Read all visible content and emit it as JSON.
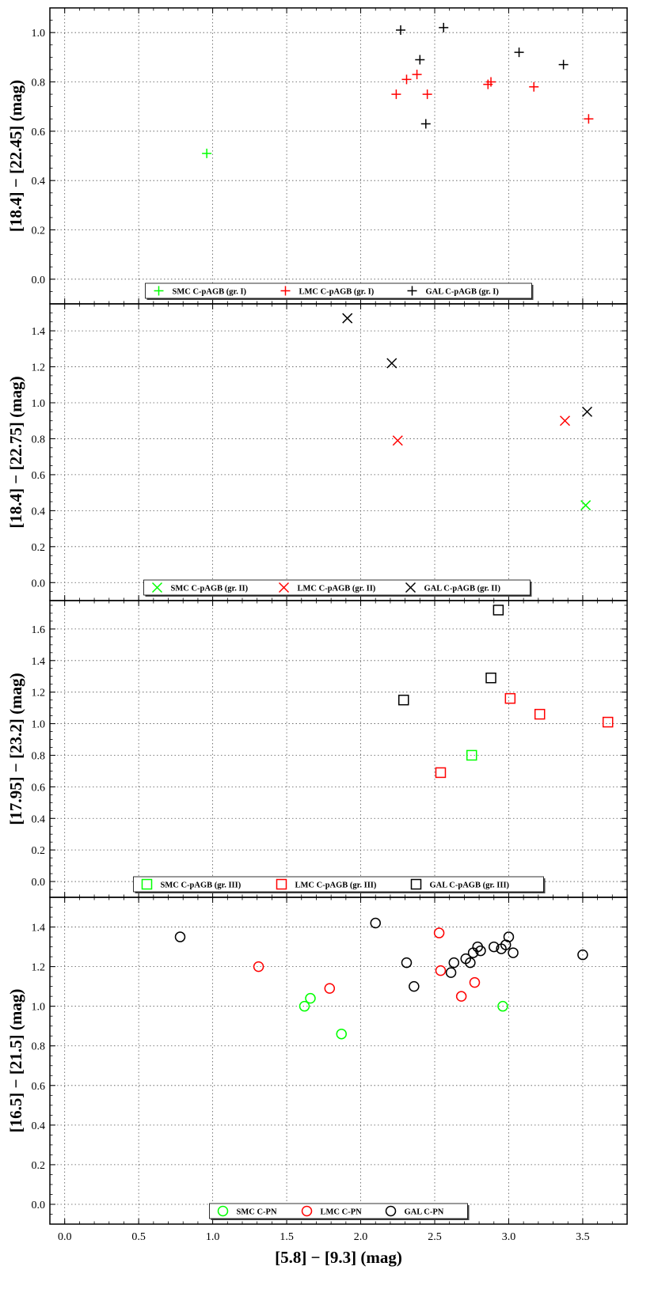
{
  "chart_data": {
    "type": "scatter",
    "xlabel": "[5.8] − [9.3] (mag)",
    "xlim": [
      -0.1,
      3.8
    ],
    "xticks": [
      "0.0",
      "0.5",
      "1.0",
      "1.5",
      "2.0",
      "2.5",
      "3.0",
      "3.5"
    ],
    "xtick_values": [
      0.0,
      0.5,
      1.0,
      1.5,
      2.0,
      2.5,
      3.0,
      3.5
    ],
    "grid": true,
    "shared_x": true,
    "panels": [
      {
        "ylabel": "[18.4] − [22.45] (mag)",
        "ylim": [
          -0.1,
          1.1
        ],
        "yticks": [
          "0.0",
          "0.2",
          "0.4",
          "0.6",
          "0.8",
          "1.0"
        ],
        "ytick_values": [
          0.0,
          0.2,
          0.4,
          0.6,
          0.8,
          1.0
        ],
        "legend_position": "bottom-center",
        "series": [
          {
            "name": "SMC C-pAGB (gr. I)",
            "marker": "plus",
            "color": "#00ff00",
            "points": [
              [
                0.96,
                0.51
              ]
            ]
          },
          {
            "name": "LMC C-pAGB (gr. I)",
            "marker": "plus",
            "color": "#ff0000",
            "points": [
              [
                2.24,
                0.75
              ],
              [
                2.31,
                0.81
              ],
              [
                2.38,
                0.83
              ],
              [
                2.45,
                0.75
              ],
              [
                2.86,
                0.79
              ],
              [
                2.88,
                0.8
              ],
              [
                3.17,
                0.78
              ],
              [
                3.54,
                0.65
              ]
            ]
          },
          {
            "name": "GAL C-pAGB (gr. I)",
            "marker": "plus",
            "color": "#000000",
            "points": [
              [
                2.27,
                1.01
              ],
              [
                2.4,
                0.89
              ],
              [
                2.44,
                0.63
              ],
              [
                2.56,
                1.02
              ],
              [
                3.07,
                0.92
              ],
              [
                3.37,
                0.87
              ]
            ]
          }
        ]
      },
      {
        "ylabel": "[18.4] − [22.75] (mag)",
        "ylim": [
          -0.1,
          1.55
        ],
        "yticks": [
          "0.0",
          "0.2",
          "0.4",
          "0.6",
          "0.8",
          "1.0",
          "1.2",
          "1.4"
        ],
        "ytick_values": [
          0.0,
          0.2,
          0.4,
          0.6,
          0.8,
          1.0,
          1.2,
          1.4
        ],
        "legend_position": "bottom-center",
        "series": [
          {
            "name": "SMC C-pAGB (gr. II)",
            "marker": "x",
            "color": "#00ff00",
            "points": [
              [
                3.52,
                0.43
              ]
            ]
          },
          {
            "name": "LMC C-pAGB (gr. II)",
            "marker": "x",
            "color": "#ff0000",
            "points": [
              [
                2.25,
                0.79
              ],
              [
                3.38,
                0.9
              ]
            ]
          },
          {
            "name": "GAL C-pAGB (gr. II)",
            "marker": "x",
            "color": "#000000",
            "points": [
              [
                1.91,
                1.47
              ],
              [
                2.21,
                1.22
              ],
              [
                3.53,
                0.95
              ]
            ]
          }
        ]
      },
      {
        "ylabel": "[17.95] − [23.2] (mag)",
        "ylim": [
          -0.1,
          1.78
        ],
        "yticks": [
          "0.0",
          "0.2",
          "0.4",
          "0.6",
          "0.8",
          "1.0",
          "1.2",
          "1.4",
          "1.6"
        ],
        "ytick_values": [
          0.0,
          0.2,
          0.4,
          0.6,
          0.8,
          1.0,
          1.2,
          1.4,
          1.6
        ],
        "legend_position": "bottom-center",
        "series": [
          {
            "name": "SMC C-pAGB (gr. III)",
            "marker": "square",
            "color": "#00ff00",
            "points": [
              [
                2.75,
                0.8
              ]
            ]
          },
          {
            "name": "LMC C-pAGB (gr. III)",
            "marker": "square",
            "color": "#ff0000",
            "points": [
              [
                2.54,
                0.69
              ],
              [
                3.01,
                1.16
              ],
              [
                3.21,
                1.06
              ],
              [
                3.67,
                1.01
              ]
            ]
          },
          {
            "name": "GAL C-pAGB (gr. III)",
            "marker": "square",
            "color": "#000000",
            "points": [
              [
                2.29,
                1.15
              ],
              [
                2.88,
                1.29
              ],
              [
                2.93,
                1.72
              ]
            ]
          }
        ]
      },
      {
        "ylabel": "[16.5] − [21.5] (mag)",
        "ylim": [
          -0.1,
          1.55
        ],
        "yticks": [
          "0.0",
          "0.2",
          "0.4",
          "0.6",
          "0.8",
          "1.0",
          "1.2",
          "1.4"
        ],
        "ytick_values": [
          0.0,
          0.2,
          0.4,
          0.6,
          0.8,
          1.0,
          1.2,
          1.4
        ],
        "legend_position": "bottom-center",
        "series": [
          {
            "name": "SMC C-PN",
            "marker": "circle",
            "color": "#00ff00",
            "points": [
              [
                1.62,
                1.0
              ],
              [
                1.66,
                1.04
              ],
              [
                1.87,
                0.86
              ],
              [
                2.96,
                1.0
              ]
            ]
          },
          {
            "name": "LMC C-PN",
            "marker": "circle",
            "color": "#ff0000",
            "points": [
              [
                1.31,
                1.2
              ],
              [
                1.79,
                1.09
              ],
              [
                2.53,
                1.37
              ],
              [
                2.54,
                1.18
              ],
              [
                2.68,
                1.05
              ],
              [
                2.77,
                1.12
              ]
            ]
          },
          {
            "name": "GAL C-PN",
            "marker": "circle",
            "color": "#000000",
            "points": [
              [
                0.78,
                1.35
              ],
              [
                2.1,
                1.42
              ],
              [
                2.31,
                1.22
              ],
              [
                2.36,
                1.1
              ],
              [
                2.61,
                1.17
              ],
              [
                2.63,
                1.22
              ],
              [
                2.71,
                1.24
              ],
              [
                2.74,
                1.22
              ],
              [
                2.76,
                1.27
              ],
              [
                2.79,
                1.3
              ],
              [
                2.81,
                1.28
              ],
              [
                2.9,
                1.3
              ],
              [
                2.95,
                1.29
              ],
              [
                2.98,
                1.31
              ],
              [
                3.0,
                1.35
              ],
              [
                3.03,
                1.27
              ],
              [
                3.5,
                1.26
              ]
            ]
          }
        ]
      }
    ]
  }
}
